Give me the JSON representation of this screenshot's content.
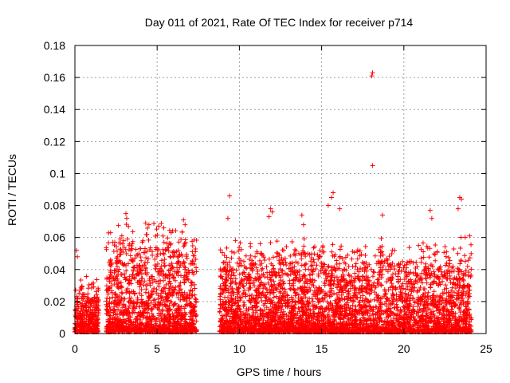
{
  "chart_data": {
    "type": "scatter",
    "title": "Day 011 of 2021, Rate Of TEC Index for receiver p714",
    "xlabel": "GPS time / hours",
    "ylabel": "ROTI / TECUs",
    "xlim": [
      0,
      25
    ],
    "ylim": [
      0,
      0.18
    ],
    "grid": true,
    "x_ticks": [
      0,
      5,
      10,
      15,
      20,
      25
    ],
    "x_tick_labels": [
      "0",
      "5",
      "10",
      "15",
      "20",
      "25"
    ],
    "y_ticks": [
      0,
      0.02,
      0.04,
      0.06,
      0.08,
      0.1,
      0.12,
      0.14,
      0.16,
      0.18
    ],
    "y_tick_labels": [
      "0",
      "0.02",
      "0.04",
      "0.06",
      "0.08",
      "0.1",
      "0.12",
      "0.14",
      "0.16",
      "0.18"
    ],
    "marker": "+",
    "marker_color": "#ff0000",
    "series": [
      {
        "name": "ROTI",
        "segments": [
          {
            "x_start": 0.0,
            "x_end": 1.45,
            "typical_max": 0.03,
            "note": "dense cluster"
          },
          {
            "x_start": 1.9,
            "x_end": 7.4,
            "typical_max": 0.06,
            "note": "dense cluster"
          },
          {
            "x_start": 8.8,
            "x_end": 24.1,
            "typical_max": 0.05,
            "note": "dense cluster"
          }
        ],
        "notable_points": [
          {
            "x": 0.1,
            "y": 0.052
          },
          {
            "x": 0.15,
            "y": 0.048
          },
          {
            "x": 3.1,
            "y": 0.075
          },
          {
            "x": 3.15,
            "y": 0.072
          },
          {
            "x": 4.3,
            "y": 0.069
          },
          {
            "x": 4.5,
            "y": 0.068
          },
          {
            "x": 5.1,
            "y": 0.067
          },
          {
            "x": 5.4,
            "y": 0.066
          },
          {
            "x": 6.6,
            "y": 0.071
          },
          {
            "x": 6.7,
            "y": 0.068
          },
          {
            "x": 9.4,
            "y": 0.086
          },
          {
            "x": 9.3,
            "y": 0.072
          },
          {
            "x": 11.9,
            "y": 0.078
          },
          {
            "x": 12.0,
            "y": 0.076
          },
          {
            "x": 11.8,
            "y": 0.073
          },
          {
            "x": 13.8,
            "y": 0.074
          },
          {
            "x": 13.9,
            "y": 0.068
          },
          {
            "x": 15.7,
            "y": 0.088
          },
          {
            "x": 15.6,
            "y": 0.085
          },
          {
            "x": 15.4,
            "y": 0.08
          },
          {
            "x": 16.1,
            "y": 0.078
          },
          {
            "x": 18.1,
            "y": 0.163
          },
          {
            "x": 18.05,
            "y": 0.161
          },
          {
            "x": 18.1,
            "y": 0.105
          },
          {
            "x": 18.7,
            "y": 0.074
          },
          {
            "x": 21.6,
            "y": 0.077
          },
          {
            "x": 21.7,
            "y": 0.072
          },
          {
            "x": 23.4,
            "y": 0.085
          },
          {
            "x": 23.5,
            "y": 0.084
          },
          {
            "x": 23.3,
            "y": 0.078
          },
          {
            "x": 24.0,
            "y": 0.061
          }
        ]
      }
    ]
  }
}
